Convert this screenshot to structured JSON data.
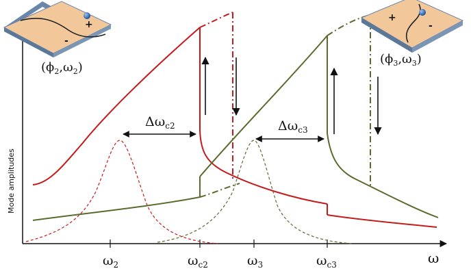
{
  "axes": {
    "y_label": "Mode amplitudes",
    "x_label": "ω"
  },
  "ticks": [
    {
      "base": "ω",
      "sub": "2"
    },
    {
      "base": "ω",
      "sub": "c2"
    },
    {
      "base": "ω",
      "sub": "3"
    },
    {
      "base": "ω",
      "sub": "c3"
    }
  ],
  "annotations": {
    "gap2": {
      "base": "Δω",
      "sub": "c2"
    },
    "gap3": {
      "base": "Δω",
      "sub": "c3"
    }
  },
  "insets": {
    "left": {
      "caption": {
        "open": "(",
        "phi": "ϕ",
        "phi_sub": "2",
        "sep": ",",
        "omega": "ω",
        "omega_sub": "2",
        "close": ")"
      },
      "plus": "+",
      "minus": "-"
    },
    "right": {
      "caption": {
        "open": "(",
        "phi": "ϕ",
        "phi_sub": "3",
        "sep": ",",
        "omega": "ω",
        "omega_sub": "3",
        "close": ")"
      },
      "plus": "+",
      "minus": "-"
    }
  },
  "colors": {
    "red": "#c41a1a",
    "green": "#5a6b2e",
    "axis": "#111111",
    "plate": "#f2c89a",
    "plate_edge": "#6a86a8",
    "marker": "#2f5fa8"
  }
}
